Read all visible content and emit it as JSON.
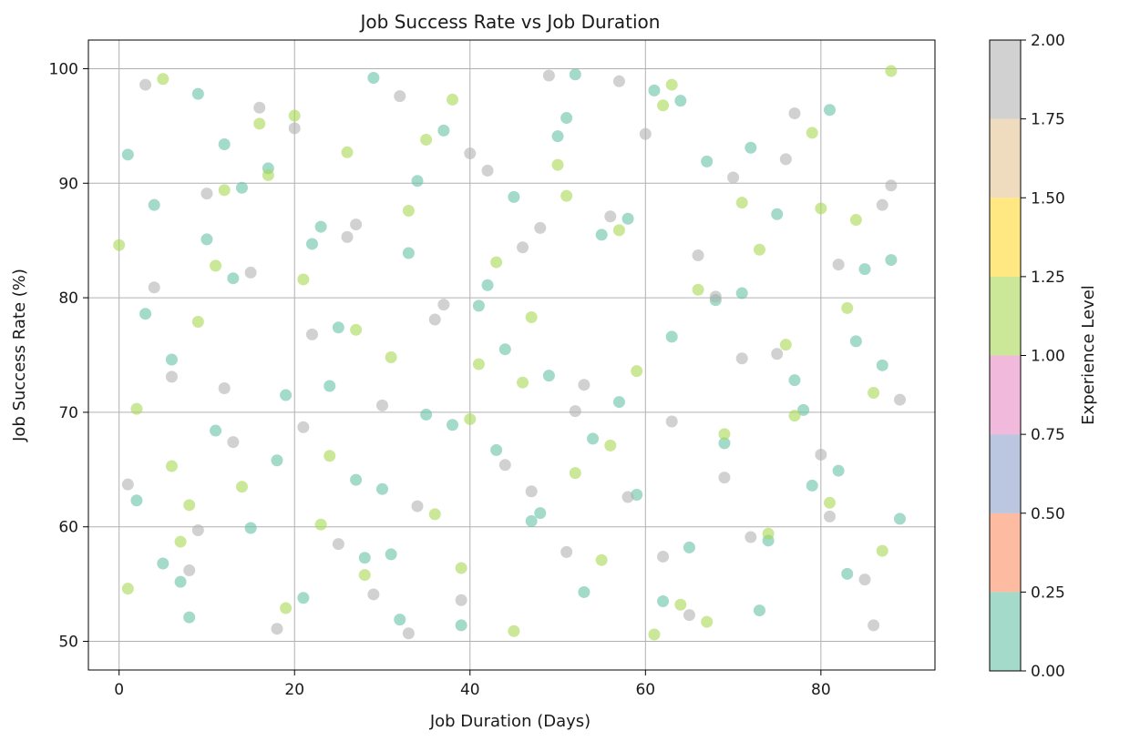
{
  "chart_data": {
    "type": "scatter",
    "title": "Job Success Rate vs Job Duration",
    "xlabel": "Job Duration (Days)",
    "ylabel": "Job Success Rate (%)",
    "xlim": [
      -3.5,
      93.0
    ],
    "ylim": [
      47.5,
      102.5
    ],
    "xticks": [
      0,
      20,
      40,
      60,
      80
    ],
    "yticks": [
      50,
      60,
      70,
      80,
      90,
      100
    ],
    "grid": true,
    "marker_alpha": 0.6,
    "colorbar": {
      "label": "Experience Level",
      "range": [
        0,
        2
      ],
      "ticks": [
        "0.00",
        "0.25",
        "0.50",
        "0.75",
        "1.00",
        "1.25",
        "1.50",
        "1.75",
        "2.00"
      ],
      "colors": [
        "#66c2a5",
        "#fc8d62",
        "#8da0cb",
        "#e78ac3",
        "#a6d854",
        "#ffd92f",
        "#e5c494",
        "#b3b3b3"
      ]
    },
    "series": [
      {
        "level": 0,
        "color": "#66c2a5",
        "x": [
          1,
          2,
          4,
          6,
          7,
          9,
          11,
          13,
          15,
          17,
          19,
          21,
          23,
          25,
          27,
          29,
          31,
          33,
          35,
          37,
          39,
          41,
          43,
          45,
          47,
          49,
          51,
          53,
          55,
          57,
          59,
          61,
          63,
          65,
          67,
          69,
          71,
          73,
          75,
          77,
          79,
          81,
          83,
          85,
          87,
          89,
          3,
          8,
          12,
          18,
          22,
          28,
          34,
          38,
          44,
          48,
          52,
          58,
          62,
          68,
          72,
          78,
          82,
          88,
          5,
          14,
          24,
          32,
          42,
          54,
          64,
          74,
          84,
          10,
          30,
          50
        ],
        "y": [
          92.5,
          62.3,
          88.1,
          74.6,
          55.2,
          97.8,
          68.4,
          81.7,
          59.9,
          91.3,
          71.5,
          53.8,
          86.2,
          77.4,
          64.1,
          99.2,
          57.6,
          83.9,
          69.8,
          94.6,
          51.4,
          79.3,
          66.7,
          88.8,
          60.5,
          73.2,
          95.7,
          54.3,
          85.5,
          70.9,
          62.8,
          98.1,
          76.6,
          58.2,
          91.9,
          67.3,
          80.4,
          52.7,
          87.3,
          72.8,
          63.6,
          96.4,
          55.9,
          82.5,
          74.1,
          60.7,
          78.6,
          52.1,
          93.4,
          65.8,
          84.7,
          57.3,
          90.2,
          68.9,
          75.5,
          61.2,
          99.5,
          86.9,
          53.5,
          79.8,
          93.1,
          70.2,
          64.9,
          83.3,
          56.8,
          89.6,
          72.3,
          51.9,
          81.1,
          67.7,
          97.2,
          58.8,
          76.2,
          85.1,
          63.3,
          94.1
        ]
      },
      {
        "level": 1,
        "color": "#a6d854",
        "x": [
          0,
          2,
          5,
          7,
          9,
          12,
          14,
          16,
          19,
          21,
          24,
          26,
          28,
          31,
          33,
          36,
          38,
          40,
          43,
          45,
          47,
          50,
          52,
          55,
          57,
          59,
          62,
          64,
          66,
          69,
          71,
          74,
          76,
          79,
          81,
          84,
          86,
          88,
          1,
          6,
          11,
          17,
          23,
          27,
          35,
          39,
          46,
          51,
          56,
          63,
          67,
          73,
          77,
          83,
          87,
          8,
          20,
          41,
          61,
          80
        ],
        "y": [
          84.6,
          70.3,
          99.1,
          58.7,
          77.9,
          89.4,
          63.5,
          95.2,
          52.9,
          81.6,
          66.2,
          92.7,
          55.8,
          74.8,
          87.6,
          61.1,
          97.3,
          69.4,
          83.1,
          50.9,
          78.3,
          91.6,
          64.7,
          57.1,
          85.9,
          73.6,
          96.8,
          53.2,
          80.7,
          68.1,
          88.3,
          59.4,
          75.9,
          94.4,
          62.1,
          86.8,
          71.7,
          99.8,
          54.6,
          65.3,
          82.8,
          90.7,
          60.2,
          77.2,
          93.8,
          56.4,
          72.6,
          88.9,
          67.1,
          98.6,
          51.7,
          84.2,
          69.7,
          79.1,
          57.9,
          61.9,
          95.9,
          74.2,
          50.6,
          87.8
        ]
      },
      {
        "level": 2,
        "color": "#b3b3b3",
        "x": [
          1,
          3,
          6,
          8,
          10,
          13,
          15,
          18,
          20,
          22,
          25,
          27,
          30,
          32,
          34,
          37,
          39,
          42,
          44,
          46,
          49,
          51,
          53,
          56,
          58,
          60,
          63,
          65,
          68,
          70,
          72,
          75,
          77,
          80,
          82,
          85,
          87,
          89,
          4,
          9,
          16,
          21,
          26,
          29,
          36,
          40,
          47,
          52,
          57,
          62,
          66,
          71,
          76,
          81,
          86,
          12,
          33,
          48,
          69,
          88
        ],
        "y": [
          63.7,
          98.6,
          73.1,
          56.2,
          89.1,
          67.4,
          82.2,
          51.1,
          94.8,
          76.8,
          58.5,
          86.4,
          70.6,
          97.6,
          61.8,
          79.4,
          53.6,
          91.1,
          65.4,
          84.4,
          99.4,
          57.8,
          72.4,
          87.1,
          62.6,
          94.3,
          69.2,
          52.3,
          80.1,
          90.5,
          59.1,
          75.1,
          96.1,
          66.3,
          82.9,
          55.4,
          88.1,
          71.1,
          80.9,
          59.7,
          96.6,
          68.7,
          85.3,
          54.1,
          78.1,
          92.6,
          63.1,
          70.1,
          98.9,
          57.4,
          83.7,
          74.7,
          92.1,
          60.9,
          51.4,
          72.1,
          50.7,
          86.1,
          64.3,
          89.8
        ]
      }
    ]
  }
}
